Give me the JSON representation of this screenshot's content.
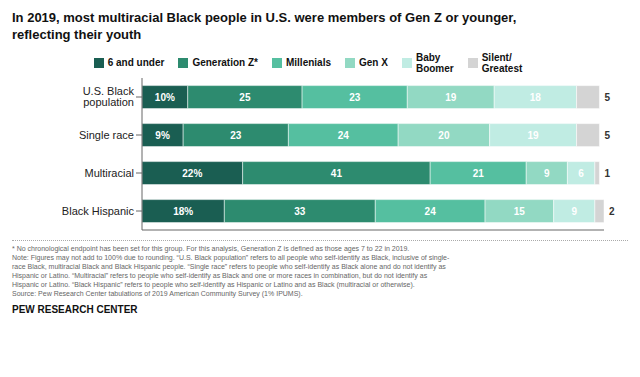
{
  "chart_data": {
    "type": "bar",
    "orientation": "horizontal",
    "stacked": true,
    "title": "In 2019, most multiracial Black people in U.S. were members of Gen Z or younger,\nreflecting their youth",
    "categories": [
      "U.S. Black population",
      "Single race",
      "Multiracial",
      "Black Hispanic"
    ],
    "series": [
      {
        "name": "6 and under",
        "color": "#1a5e52",
        "values": [
          10,
          9,
          22,
          18
        ],
        "value_labels": [
          "10%",
          "9%",
          "22%",
          "18%"
        ]
      },
      {
        "name": "Generation Z*",
        "color": "#2d8b6f",
        "values": [
          25,
          23,
          41,
          33
        ]
      },
      {
        "name": "Millenials",
        "color": "#55bfa0",
        "values": [
          23,
          24,
          21,
          24
        ]
      },
      {
        "name": "Gen X",
        "color": "#92d9c3",
        "values": [
          19,
          20,
          9,
          15
        ]
      },
      {
        "name": "Baby\nBoomer",
        "color": "#c0ece3",
        "values": [
          18,
          19,
          6,
          9
        ]
      },
      {
        "name": "Silent/\nGreatest",
        "color": "#d4d4d4",
        "values": [
          5,
          5,
          1,
          2
        ]
      }
    ],
    "xlim": [
      0,
      101
    ],
    "data_labels": true,
    "tick_labels": "y",
    "legend": "top",
    "grid": false,
    "annotations": [
      "* No chronological endpoint has been set for this group. For this analysis, Generation Z is defined as those ages 7 to 22 in 2019.",
      "Note: Figures may not add to 100% due to rounding. “U.S. Black population” refers to all people who self-identify as Black, inclusive of single-",
      "race Black, multiracial Black and Black Hispanic people. “Single race” refers to people who self-identify as Black alone and do not identify as",
      "Hispanic or Latino. “Multiracial” refers to people who self-identify as Black and one or more races in combination, but do not identify as",
      "Hispanic or Latino. “Black Hispanic” refers to people who self-identify as Hispanic or Latino and as Black (multiracial or otherwise).",
      "Source: Pew Research Center tabulations of 2019 American Community Survey (1% IPUMS)."
    ],
    "source": "PEW RESEARCH CENTER"
  }
}
